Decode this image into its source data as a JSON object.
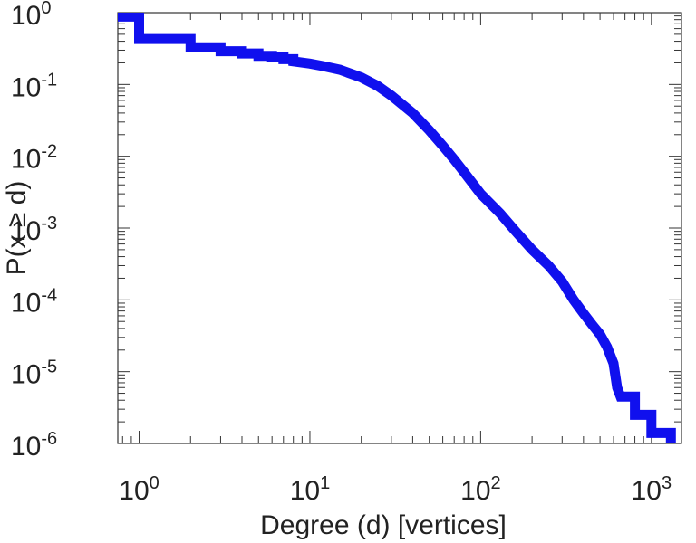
{
  "chart_data": {
    "type": "line",
    "title": "",
    "xlabel": "Degree (d) [vertices]",
    "ylabel": "P(x ≥ d)",
    "xscale": "log",
    "yscale": "log",
    "xlim": [
      0.75,
      1500
    ],
    "ylim": [
      1e-06,
      1
    ],
    "grid": false,
    "legend": "none",
    "x_ticks": [
      {
        "value": 1,
        "base": "10",
        "exp": "0"
      },
      {
        "value": 10,
        "base": "10",
        "exp": "1"
      },
      {
        "value": 100,
        "base": "10",
        "exp": "2"
      },
      {
        "value": 1000,
        "base": "10",
        "exp": "3"
      }
    ],
    "y_ticks": [
      {
        "value": 1,
        "base": "10",
        "exp": "0"
      },
      {
        "value": 0.1,
        "base": "10",
        "exp": "-1"
      },
      {
        "value": 0.01,
        "base": "10",
        "exp": "-2"
      },
      {
        "value": 0.001,
        "base": "10",
        "exp": "-3"
      },
      {
        "value": 0.0001,
        "base": "10",
        "exp": "-4"
      },
      {
        "value": 1e-05,
        "base": "10",
        "exp": "-5"
      },
      {
        "value": 1e-06,
        "base": "10",
        "exp": "-6"
      }
    ],
    "series": [
      {
        "color": "#1010ee",
        "points": [
          [
            0.75,
            0.88
          ],
          [
            1,
            0.88
          ],
          [
            1,
            0.43
          ],
          [
            2,
            0.43
          ],
          [
            2,
            0.33
          ],
          [
            3,
            0.33
          ],
          [
            3,
            0.29
          ],
          [
            4,
            0.29
          ],
          [
            4,
            0.27
          ],
          [
            5,
            0.27
          ],
          [
            5,
            0.25
          ],
          [
            6,
            0.25
          ],
          [
            6,
            0.24
          ],
          [
            7,
            0.24
          ],
          [
            7,
            0.225
          ],
          [
            8,
            0.225
          ],
          [
            8,
            0.21
          ],
          [
            10,
            0.195
          ],
          [
            12,
            0.18
          ],
          [
            15,
            0.16
          ],
          [
            20,
            0.125
          ],
          [
            25,
            0.095
          ],
          [
            30,
            0.07
          ],
          [
            40,
            0.04
          ],
          [
            50,
            0.023
          ],
          [
            60,
            0.014
          ],
          [
            70,
            0.009
          ],
          [
            80,
            0.006
          ],
          [
            100,
            0.003
          ],
          [
            130,
            0.0016
          ],
          [
            160,
            0.0009
          ],
          [
            200,
            0.0005
          ],
          [
            250,
            0.0003
          ],
          [
            300,
            0.00018
          ],
          [
            350,
            0.0001
          ],
          [
            400,
            6.5e-05
          ],
          [
            450,
            4.5e-05
          ],
          [
            500,
            3.3e-05
          ],
          [
            550,
            2.2e-05
          ],
          [
            600,
            1.3e-05
          ],
          [
            630,
            6e-06
          ],
          [
            660,
            4.5e-06
          ],
          [
            800,
            4.5e-06
          ],
          [
            800,
            2.5e-06
          ],
          [
            1000,
            2.5e-06
          ],
          [
            1000,
            1.4e-06
          ],
          [
            1300,
            1.4e-06
          ],
          [
            1300,
            1e-06
          ]
        ]
      }
    ]
  }
}
